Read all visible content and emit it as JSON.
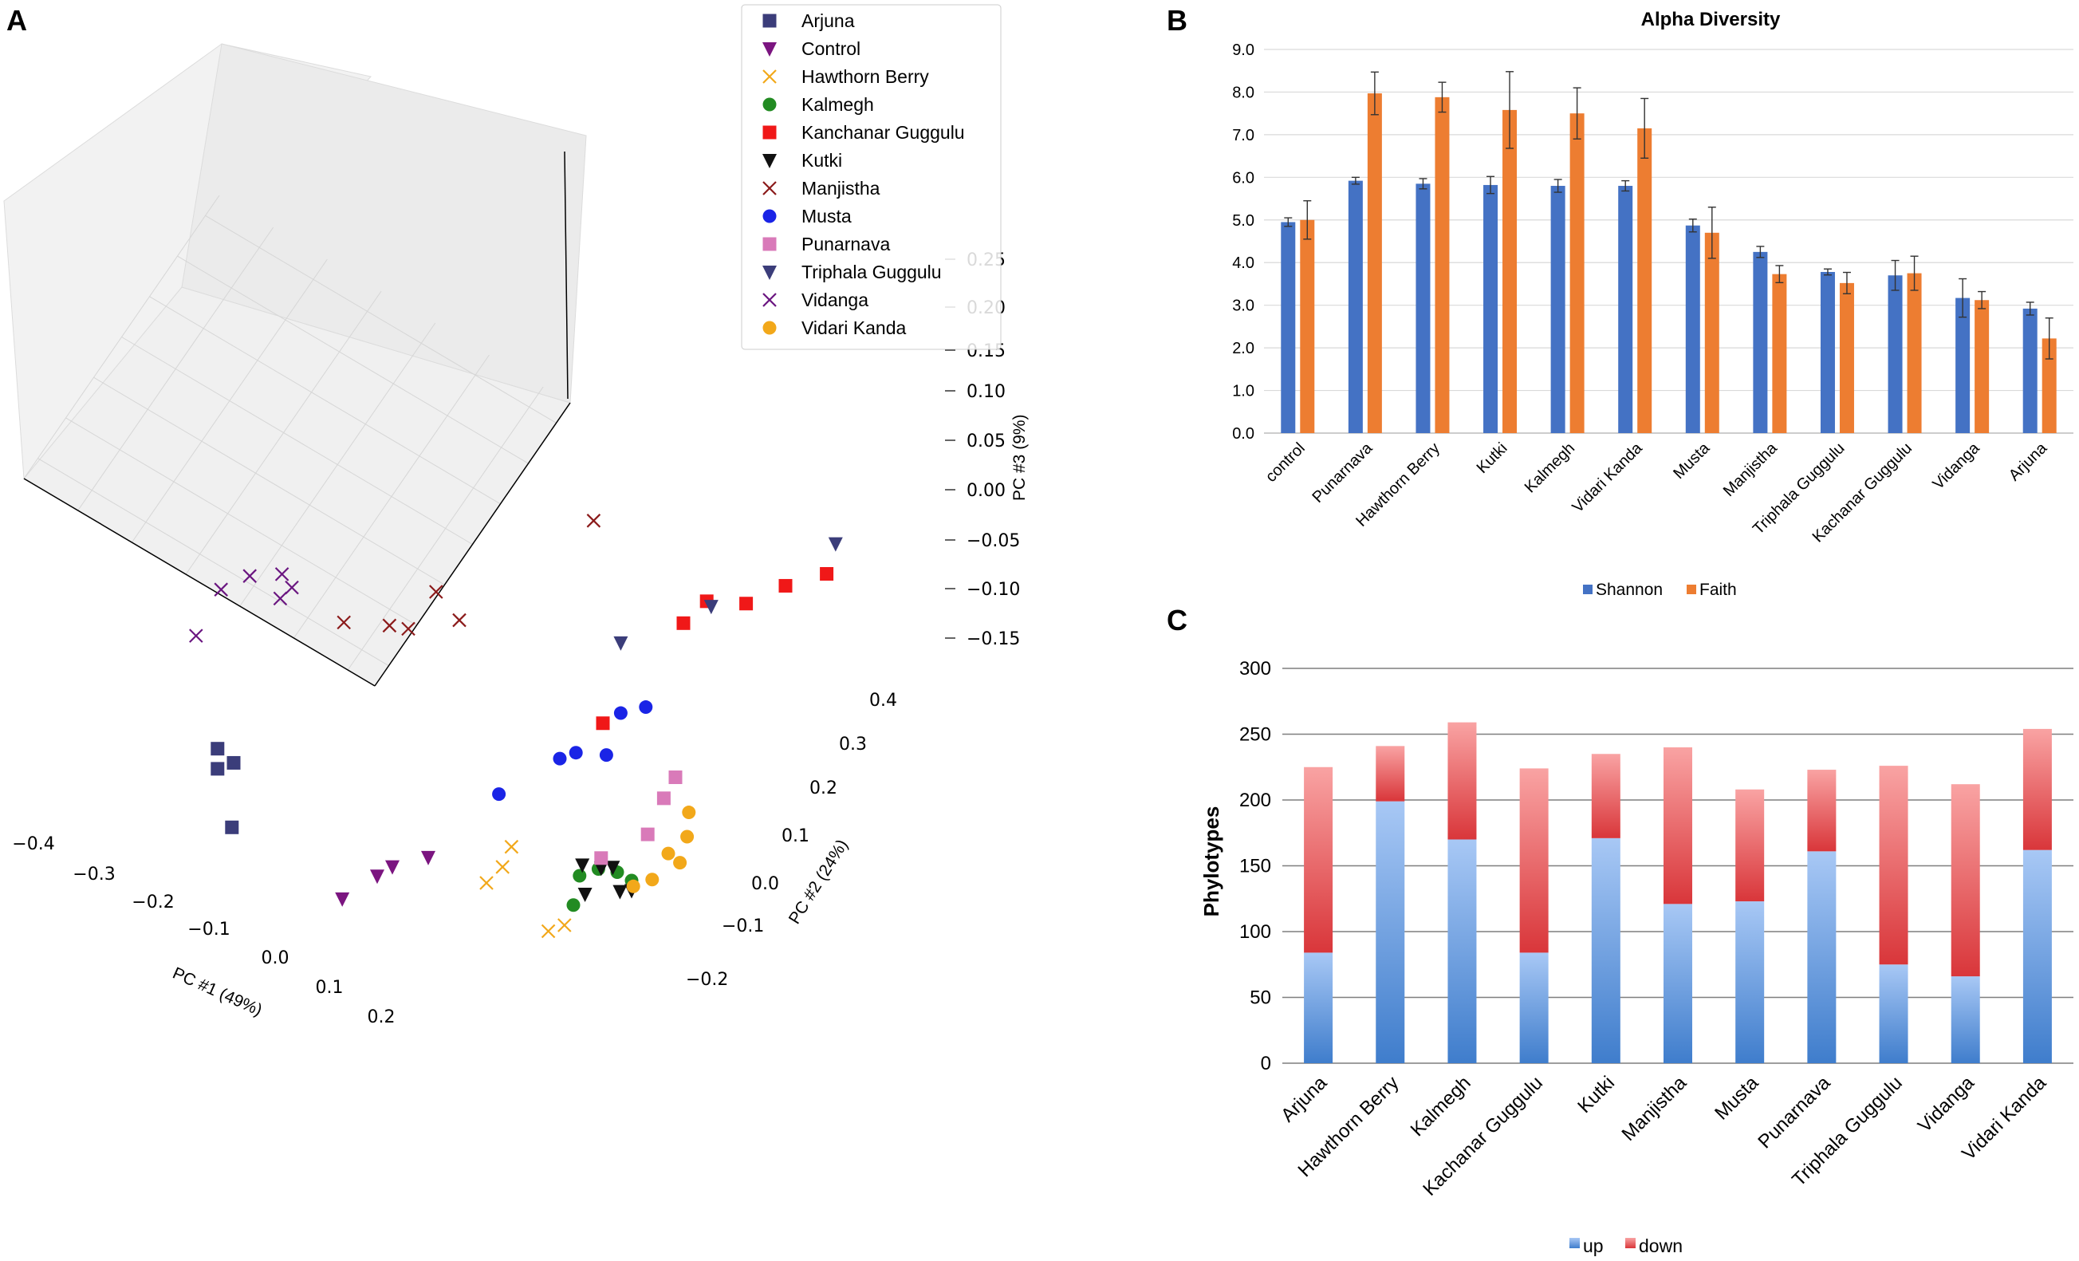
{
  "colors": {
    "arjuna": "#3b3d7a",
    "control": "#7b1580",
    "hawthorn": "#f2a81a",
    "kalmegh": "#228b22",
    "kanchanar": "#f01818",
    "kutki": "#111111",
    "manjistha": "#8b1a1a",
    "musta": "#1a24e6",
    "punarnava": "#d97ab9",
    "triphala": "#3b3d7a",
    "vidanga": "#6a1580",
    "vidari": "#f2a81a",
    "shannon": "#4472c4",
    "faith": "#ed7d31",
    "up_light": "#a8c8f5",
    "up_dark": "#3f7dcc",
    "down_light": "#f9a3a3",
    "down_dark": "#d9363a",
    "grid": "#d9d9d9",
    "pane": "#f2f2f2"
  },
  "chart_data": [
    {
      "panel": "A",
      "type": "scatter",
      "dimensions": 3,
      "xlabel": "PC #1 (49%)",
      "ylabel": "PC #2 (24%)",
      "zlabel": "PC #3 (9%)",
      "x_ticks": [
        "−0.4",
        "−0.3",
        "−0.2",
        "−0.1",
        "0.0",
        "0.1",
        "0.2"
      ],
      "y_ticks": [
        "−0.2",
        "−0.1",
        "0.0",
        "0.1",
        "0.2",
        "0.3",
        "0.4"
      ],
      "z_ticks": [
        "−0.15",
        "−0.10",
        "−0.05",
        "0.00",
        "0.05",
        "0.10",
        "0.15",
        "0.20",
        "0.25"
      ],
      "legend_position": "top-right",
      "series": [
        {
          "name": "Arjuna",
          "marker": "square",
          "color_key": "arjuna",
          "points": [
            [
              -0.4,
              -0.12,
              -0.08
            ],
            [
              -0.4,
              -0.12,
              -0.1
            ],
            [
              -0.39,
              -0.1,
              -0.1
            ],
            [
              -0.38,
              -0.12,
              -0.15
            ]
          ]
        },
        {
          "name": "Control",
          "marker": "tri-down",
          "color_key": "control",
          "points": [
            [
              -0.22,
              -0.13,
              -0.15
            ],
            [
              -0.19,
              -0.1,
              -0.13
            ],
            [
              -0.15,
              -0.05,
              -0.12
            ],
            [
              -0.2,
              -0.05,
              -0.15
            ]
          ]
        },
        {
          "name": "Hawthorn Berry",
          "marker": "x",
          "color_key": "hawthorn",
          "points": [
            [
              -0.1,
              0.0,
              -0.15
            ],
            [
              -0.09,
              0.02,
              -0.14
            ],
            [
              -0.09,
              0.04,
              -0.13
            ],
            [
              -0.02,
              0.01,
              -0.17
            ],
            [
              -0.01,
              0.03,
              -0.17
            ]
          ]
        },
        {
          "name": "Kalmegh",
          "marker": "circle",
          "color_key": "kalmegh",
          "points": [
            [
              -0.02,
              0.08,
              -0.15
            ],
            [
              -0.01,
              0.05,
              -0.16
            ],
            [
              0.0,
              0.09,
              -0.14
            ],
            [
              0.02,
              0.1,
              -0.14
            ],
            [
              0.04,
              0.1,
              -0.14
            ]
          ]
        },
        {
          "name": "Kanchanar Guggulu",
          "marker": "square",
          "color_key": "kanchanar",
          "points": [
            [
              0.0,
              0.1,
              0.0
            ],
            [
              0.05,
              0.2,
              0.07
            ],
            [
              0.07,
              0.22,
              0.09
            ],
            [
              0.1,
              0.26,
              0.08
            ],
            [
              0.13,
              0.3,
              0.09
            ],
            [
              0.15,
              0.36,
              0.08
            ]
          ]
        },
        {
          "name": "Kutki",
          "marker": "tri-down",
          "color_key": "kutki",
          "points": [
            [
              -0.01,
              0.07,
              -0.13
            ],
            [
              0.0,
              0.06,
              -0.15
            ],
            [
              0.01,
              0.08,
              -0.13
            ],
            [
              0.02,
              0.09,
              -0.13
            ],
            [
              0.03,
              0.09,
              -0.15
            ],
            [
              0.04,
              0.1,
              -0.15
            ]
          ]
        },
        {
          "name": "Manjistha",
          "marker": "x",
          "color_key": "manjistha",
          "points": [
            [
              -0.28,
              -0.03,
              0.05
            ],
            [
              -0.26,
              0.04,
              0.02
            ],
            [
              -0.24,
              0.05,
              0.02
            ],
            [
              -0.22,
              0.08,
              0.05
            ],
            [
              -0.2,
              0.1,
              0.02
            ],
            [
              -0.1,
              0.24,
              0.09
            ]
          ]
        },
        {
          "name": "Musta",
          "marker": "circle",
          "color_key": "musta",
          "points": [
            [
              -0.12,
              0.06,
              -0.1
            ],
            [
              -0.06,
              0.1,
              -0.06
            ],
            [
              -0.05,
              0.12,
              -0.06
            ],
            [
              -0.02,
              0.14,
              -0.06
            ],
            [
              0.01,
              0.18,
              -0.02
            ],
            [
              0.0,
              0.14,
              -0.01
            ]
          ]
        },
        {
          "name": "Punarnava",
          "marker": "square",
          "color_key": "punarnava",
          "points": [
            [
              0.01,
              0.08,
              -0.12
            ],
            [
              0.05,
              0.12,
              -0.1
            ],
            [
              0.06,
              0.14,
              -0.07
            ],
            [
              0.07,
              0.15,
              -0.05
            ]
          ]
        },
        {
          "name": "Triphala Guggulu",
          "marker": "tri-down",
          "color_key": "triphala",
          "points": [
            [
              0.0,
              0.14,
              0.06
            ],
            [
              0.07,
              0.23,
              0.08
            ],
            [
              0.15,
              0.38,
              0.1
            ]
          ]
        },
        {
          "name": "Vidanga",
          "marker": "x",
          "color_key": "vidanga",
          "points": [
            [
              -0.43,
              -0.12,
              0.02
            ],
            [
              -0.42,
              -0.08,
              0.05
            ],
            [
              -0.38,
              -0.08,
              0.08
            ],
            [
              -0.36,
              -0.04,
              0.07
            ],
            [
              -0.35,
              -0.06,
              0.06
            ],
            [
              -0.34,
              -0.05,
              0.07
            ]
          ]
        },
        {
          "name": "Vidari Kanda",
          "marker": "circle",
          "color_key": "vidari",
          "points": [
            [
              0.03,
              0.12,
              -0.16
            ],
            [
              0.05,
              0.13,
              -0.15
            ],
            [
              0.06,
              0.15,
              -0.13
            ],
            [
              0.07,
              0.16,
              -0.14
            ],
            [
              0.08,
              0.16,
              -0.11
            ],
            [
              0.07,
              0.18,
              -0.1
            ]
          ]
        }
      ]
    },
    {
      "panel": "B",
      "type": "bar",
      "title": "Alpha Diversity",
      "categories": [
        "control",
        "Punarnava",
        "Hawthorn Berry",
        "Kutki",
        "Kalmegh",
        "Vidari Kanda",
        "Musta",
        "Manjistha",
        "Triphala Guggulu",
        "Kachanar Guggulu",
        "Vidanga",
        "Arjuna"
      ],
      "series": [
        {
          "name": "Shannon",
          "color_key": "shannon",
          "values": [
            4.95,
            5.92,
            5.85,
            5.82,
            5.8,
            5.8,
            4.87,
            4.25,
            3.78,
            3.7,
            3.17,
            2.92
          ],
          "errors": [
            0.1,
            0.08,
            0.12,
            0.2,
            0.15,
            0.12,
            0.15,
            0.13,
            0.07,
            0.35,
            0.45,
            0.15
          ]
        },
        {
          "name": "Faith",
          "color_key": "faith",
          "values": [
            5.0,
            7.97,
            7.88,
            7.58,
            7.5,
            7.15,
            4.7,
            3.73,
            3.52,
            3.75,
            3.12,
            2.22
          ],
          "errors": [
            0.45,
            0.5,
            0.35,
            0.9,
            0.6,
            0.7,
            0.6,
            0.2,
            0.25,
            0.4,
            0.2,
            0.48
          ]
        }
      ],
      "ylim": [
        0,
        9
      ],
      "y_ticks": [
        "0.0",
        "1.0",
        "2.0",
        "3.0",
        "4.0",
        "5.0",
        "6.0",
        "7.0",
        "8.0",
        "9.0"
      ],
      "legend_position": "bottom"
    },
    {
      "panel": "C",
      "type": "bar",
      "stacked": true,
      "ylabel": "Phylotypes",
      "categories": [
        "Arjuna",
        "Hawthorn Berry",
        "Kalmegh",
        "Kachanar Guggulu",
        "Kutki",
        "Manjistha",
        "Musta",
        "Punarnava",
        "Triphala Guggulu",
        "Vidanga",
        "Vidari Kanda"
      ],
      "series": [
        {
          "name": "up",
          "values": [
            84,
            199,
            170,
            84,
            171,
            121,
            123,
            161,
            75,
            66,
            162
          ]
        },
        {
          "name": "down",
          "values": [
            141,
            42,
            89,
            140,
            64,
            119,
            85,
            62,
            151,
            146,
            92
          ]
        }
      ],
      "ylim": [
        0,
        300
      ],
      "y_ticks": [
        "0",
        "50",
        "100",
        "150",
        "200",
        "250",
        "300"
      ],
      "legend_position": "bottom"
    }
  ],
  "panels": {
    "a": {
      "letter": "A"
    },
    "b": {
      "letter": "B"
    },
    "c": {
      "letter": "C"
    }
  }
}
